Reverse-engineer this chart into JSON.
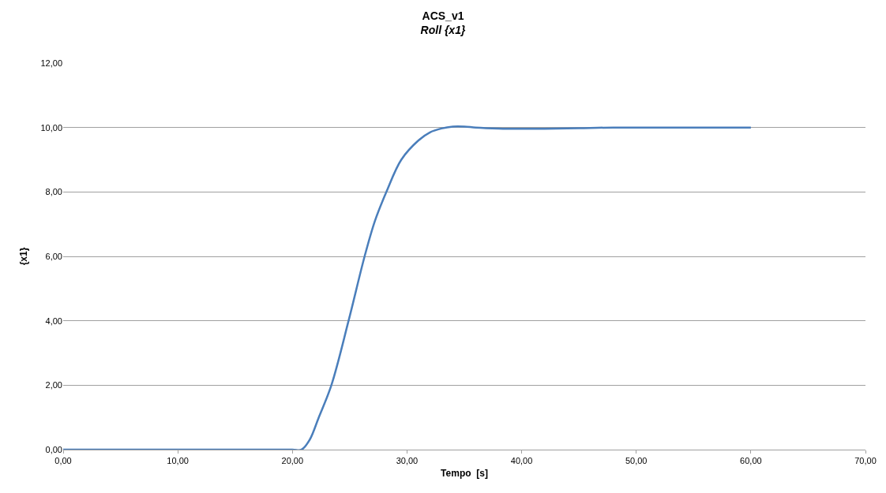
{
  "chart_data": {
    "type": "line",
    "title": "ACS_v1",
    "subtitle": "Roll {x1}",
    "xlabel": "Tempo  [s]",
    "ylabel": "{x1}",
    "x": [
      0,
      5,
      10,
      15,
      20,
      20.8,
      21.5,
      22.3,
      23.4,
      24.9,
      26.3,
      27.2,
      28.2,
      29.5,
      31,
      32,
      33,
      34,
      35,
      36,
      38,
      40,
      42,
      45,
      48,
      52,
      56,
      60
    ],
    "series": [
      {
        "color": "#4a7ebb",
        "values": [
          0,
          0,
          0,
          0,
          0,
          0,
          0.3,
          1,
          2,
          4,
          6,
          7.1,
          8,
          9,
          9.6,
          9.85,
          9.97,
          10.03,
          10.03,
          10,
          9.97,
          9.96,
          9.96,
          9.98,
          10,
          10,
          10,
          10
        ]
      }
    ],
    "xlim": [
      0,
      70
    ],
    "ylim": [
      0,
      12
    ],
    "xticks": [
      {
        "value": 0,
        "label": "0,00"
      },
      {
        "value": 10,
        "label": "10,00"
      },
      {
        "value": 20,
        "label": "20,00"
      },
      {
        "value": 30,
        "label": "30,00"
      },
      {
        "value": 40,
        "label": "40,00"
      },
      {
        "value": 50,
        "label": "50,00"
      },
      {
        "value": 60,
        "label": "60,00"
      },
      {
        "value": 70,
        "label": "70,00"
      }
    ],
    "yticks": [
      {
        "value": 0,
        "label": "0,00"
      },
      {
        "value": 2,
        "label": "2,00"
      },
      {
        "value": 4,
        "label": "4,00"
      },
      {
        "value": 6,
        "label": "6,00"
      },
      {
        "value": 8,
        "label": "8,00"
      },
      {
        "value": 10,
        "label": "10,00"
      },
      {
        "value": 12,
        "label": "12,00"
      }
    ],
    "grid": "y",
    "marker": "none",
    "line_style": "solid"
  }
}
